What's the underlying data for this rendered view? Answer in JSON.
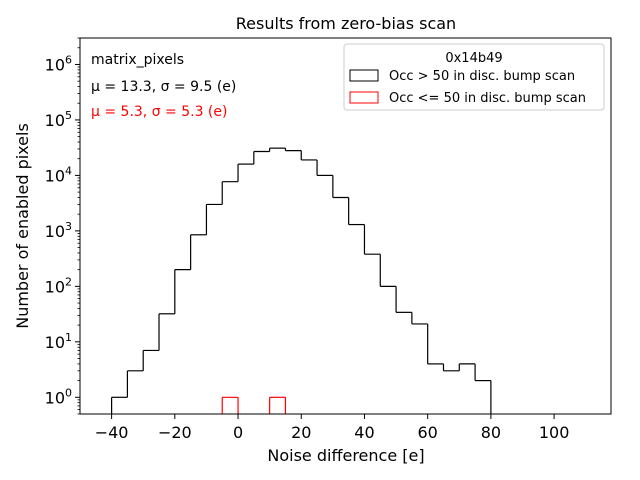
{
  "chart_data": {
    "type": "histogram",
    "title": "Results from zero-bias scan",
    "xlabel": "Noise difference [e]",
    "ylabel": "Number of enabled pixels",
    "xlim": [
      -50,
      118
    ],
    "ylog": true,
    "ylim": [
      0.5,
      3000000
    ],
    "xticks": [
      -40,
      -20,
      0,
      20,
      40,
      60,
      80,
      100
    ],
    "xtick_labels": [
      "−40",
      "−20",
      "0",
      "20",
      "40",
      "60",
      "80",
      "100"
    ],
    "yticks": [
      1,
      10,
      100,
      1000,
      10000,
      100000,
      1000000
    ],
    "ytick_base": "10",
    "ytick_exponents": [
      "0",
      "1",
      "2",
      "3",
      "4",
      "5",
      "6"
    ],
    "annotations": {
      "line1": "matrix_pixels",
      "line2": "μ = 13.3, σ = 9.5 (e)",
      "line3": "μ = 5.3, σ = 5.3 (e)",
      "line3_color": "#ff0000"
    },
    "legend": {
      "title": "0x14b49",
      "placement": "top-right",
      "entries": [
        "Occ > 50 in disc. bump scan",
        "Occ <= 50 in disc. bump scan"
      ]
    },
    "series": [
      {
        "name": "Occ > 50 in disc. bump scan",
        "color": "#000000",
        "bin_edges": [
          -40,
          -35,
          -30,
          -25,
          -20,
          -15,
          -10,
          -5,
          0,
          5,
          10,
          15,
          20,
          25,
          30,
          35,
          40,
          45,
          50,
          55,
          60,
          65,
          70,
          75,
          80
        ],
        "counts": [
          1,
          3,
          7,
          32,
          200,
          850,
          3000,
          7700,
          16000,
          27000,
          31000,
          28000,
          19000,
          10000,
          4000,
          1300,
          380,
          100,
          34,
          21,
          4,
          3,
          4,
          2
        ]
      },
      {
        "name": "Occ <= 50 in disc. bump scan",
        "color": "#ff0000",
        "bin_edges": [
          -5,
          0,
          5,
          10,
          15
        ],
        "counts": [
          1,
          0,
          0,
          1
        ]
      }
    ]
  }
}
